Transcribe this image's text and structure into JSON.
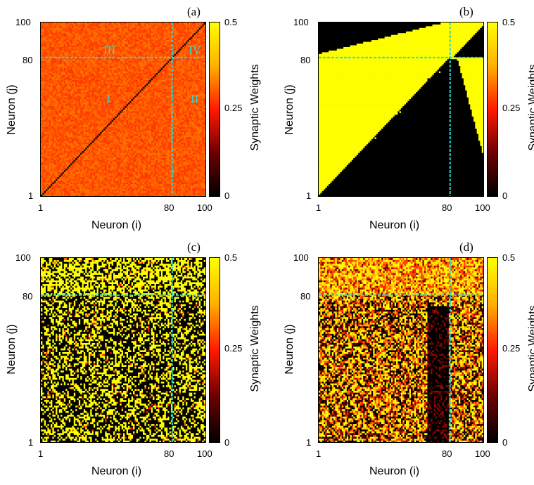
{
  "chart_data": [
    {
      "panel": "(a)",
      "type": "heatmap",
      "pattern": "random-red",
      "xlabel": "Neuron (i)",
      "ylabel": "Neuron (j)",
      "colorbar_label": "Synaptic Weights",
      "colorbar_ticks": [
        "0.5",
        "0.25",
        "0"
      ],
      "colorbar_range": [
        0,
        0.5
      ],
      "x_ticks": [
        "1",
        "80",
        "100"
      ],
      "y_ticks": [
        "100",
        "80",
        "1"
      ],
      "xlim": [
        1,
        100
      ],
      "ylim": [
        1,
        100
      ],
      "divider": 80,
      "region_labels": [
        "I",
        "II",
        "III",
        "IV"
      ],
      "diagonal_value": 0,
      "typical_weight": 0.3
    },
    {
      "panel": "(b)",
      "type": "heatmap",
      "pattern": "segregated",
      "xlabel": "Neuron (i)",
      "ylabel": "Neuron (j)",
      "colorbar_label": "Synaptic Weights",
      "colorbar_ticks": [
        "0.5",
        "0.25",
        "0"
      ],
      "colorbar_range": [
        0,
        0.5
      ],
      "x_ticks": [
        "1",
        "80",
        "100"
      ],
      "y_ticks": [
        "100",
        "80",
        "1"
      ],
      "xlim": [
        1,
        100
      ],
      "ylim": [
        1,
        100
      ],
      "divider": 80,
      "values_present": [
        0,
        0.5
      ]
    },
    {
      "panel": "(c)",
      "type": "heatmap",
      "pattern": "binary-noisy",
      "xlabel": "Neuron (i)",
      "ylabel": "Neuron (j)",
      "colorbar_label": "Synaptic Weights",
      "colorbar_ticks": [
        "0.5",
        "0.25",
        "0"
      ],
      "colorbar_range": [
        0,
        0.5
      ],
      "x_ticks": [
        "1",
        "80",
        "100"
      ],
      "y_ticks": [
        "100",
        "80",
        "1"
      ],
      "xlim": [
        1,
        100
      ],
      "ylim": [
        1,
        100
      ],
      "divider": 80
    },
    {
      "panel": "(d)",
      "type": "heatmap",
      "pattern": "mixed",
      "xlabel": "Neuron (i)",
      "ylabel": "Neuron (j)",
      "colorbar_label": "Synaptic Weights",
      "colorbar_ticks": [
        "0.5",
        "0.25",
        "0"
      ],
      "colorbar_range": [
        0,
        0.5
      ],
      "x_ticks": [
        "1",
        "80",
        "100"
      ],
      "y_ticks": [
        "100",
        "80",
        "1"
      ],
      "xlim": [
        1,
        100
      ],
      "ylim": [
        1,
        100
      ],
      "divider": 80
    }
  ],
  "colors": {
    "divider_line": "#2ad8d8",
    "low": "#000000",
    "mid": "#ff1a00",
    "high": "#ffff00"
  }
}
